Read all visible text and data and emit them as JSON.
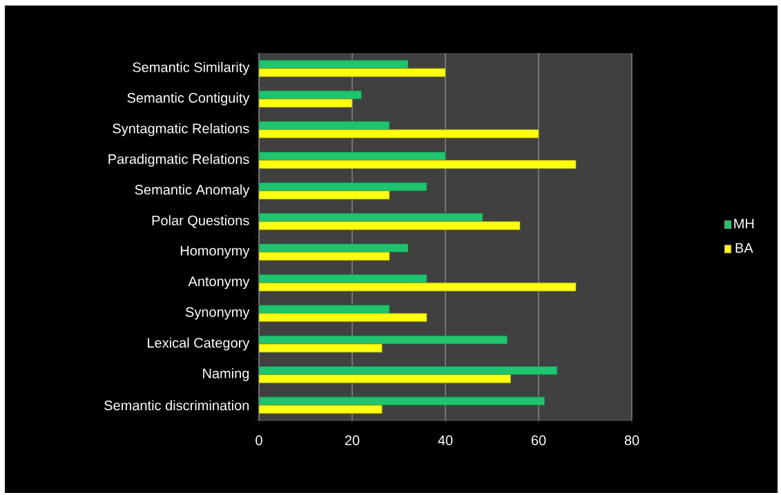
{
  "chart_data": {
    "type": "bar",
    "orientation": "horizontal",
    "categories": [
      "Semantic Similarity",
      "Semantic Contiguity",
      "Syntagmatic Relations",
      "Paradigmatic Relations",
      "Semantic Anomaly",
      "Polar Questions",
      "Homonymy",
      "Antonymy",
      "Synonymy",
      "Lexical Category",
      "Naming",
      "Semantic discrimination"
    ],
    "series": [
      {
        "name": "MH",
        "color": "#1fc46e",
        "values": [
          32,
          22,
          28,
          40,
          36,
          48,
          32,
          36,
          28,
          53.3,
          64,
          61.3
        ]
      },
      {
        "name": "BA",
        "color": "#ffff10",
        "values": [
          40,
          20,
          60,
          68,
          28,
          56,
          28,
          68,
          36,
          26.4,
          54,
          26.4
        ]
      }
    ],
    "xlim": [
      0,
      80
    ],
    "xticks": [
      0,
      20,
      40,
      60,
      80
    ],
    "grid": "x",
    "legend": "right"
  }
}
